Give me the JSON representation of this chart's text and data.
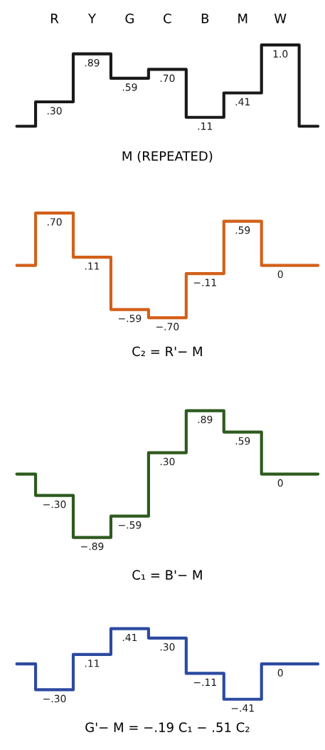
{
  "chart_data": [
    {
      "type": "step",
      "categories": [
        null,
        "R",
        "Y",
        "G",
        "C",
        "B",
        "M",
        "W",
        null
      ],
      "values": [
        0,
        0.3,
        0.89,
        0.59,
        0.7,
        0.11,
        0.41,
        1.0,
        0
      ],
      "value_labels": [
        null,
        ".30",
        ".89",
        ".59",
        ".70",
        ".11",
        ".41",
        "1.0",
        null
      ],
      "color": "#1a1a1a",
      "xlabel": "M (REPEATED)",
      "tick_labels": "x"
    },
    {
      "type": "step",
      "categories": [
        null,
        null,
        null,
        null,
        null,
        null,
        null,
        null,
        null
      ],
      "values": [
        0,
        0.7,
        0.11,
        -0.59,
        -0.7,
        -0.11,
        0.59,
        0,
        0
      ],
      "value_labels": [
        null,
        ".70",
        ".11",
        "−.59",
        "−.70",
        "−.11",
        ".59",
        "0",
        null
      ],
      "color": "#d2601a",
      "xlabel": "C₂ = R'− M"
    },
    {
      "type": "step",
      "categories": [
        null,
        null,
        null,
        null,
        null,
        null,
        null,
        null,
        null
      ],
      "values": [
        0,
        -0.3,
        -0.89,
        -0.59,
        0.3,
        0.89,
        0.59,
        0,
        0
      ],
      "value_labels": [
        null,
        "−.30",
        "−.89",
        "−.59",
        ".30",
        ".89",
        ".59",
        "0",
        null
      ],
      "color": "#2e5a1e",
      "xlabel": "C₁ = B'− M"
    },
    {
      "type": "step",
      "categories": [
        null,
        null,
        null,
        null,
        null,
        null,
        null,
        null,
        null
      ],
      "values": [
        0,
        -0.3,
        0.11,
        0.41,
        0.3,
        -0.11,
        -0.41,
        0,
        0
      ],
      "value_labels": [
        null,
        "−.30",
        ".11",
        ".41",
        ".30",
        "−.11",
        "−.41",
        "0",
        null
      ],
      "color": "#2c4aa0",
      "xlabel": "G'− M = −.19 C₁ − .51 C₂"
    }
  ]
}
